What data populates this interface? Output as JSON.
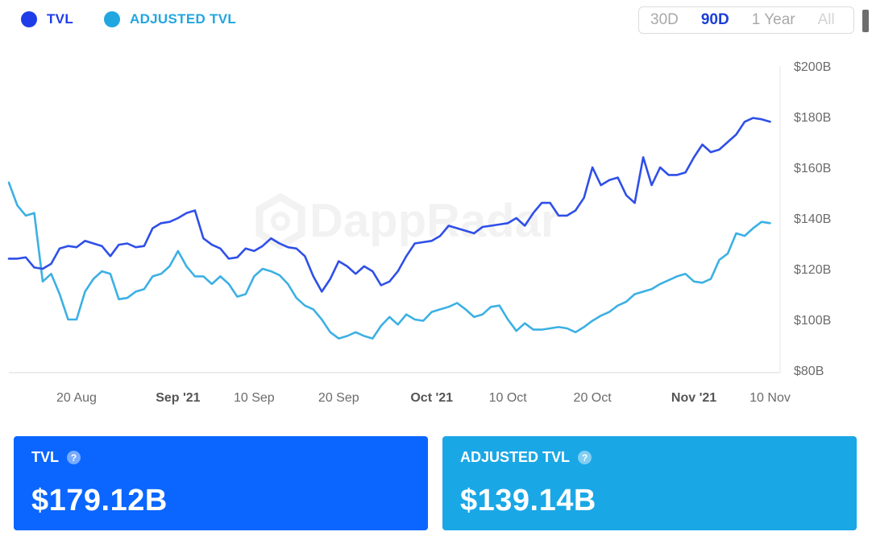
{
  "colors": {
    "tvl": "#2f4fe8",
    "adjusted": "#3cb0e4",
    "tvl_card": "#0a66ff",
    "adjusted_card": "#1aa7e6",
    "active_range": "#1a3fd6",
    "inactive_range": "#a9a9a9"
  },
  "legend": [
    {
      "label": "TVL",
      "color": "#1e3de8"
    },
    {
      "label": "ADJUSTED TVL",
      "color": "#22a6e0"
    }
  ],
  "ranges": [
    {
      "label": "30D",
      "active": false
    },
    {
      "label": "90D",
      "active": true
    },
    {
      "label": "1 Year",
      "active": false
    },
    {
      "label": "All",
      "active": false
    }
  ],
  "watermark": "DappRadar",
  "cards": {
    "tvl": {
      "title": "TVL",
      "value": "$179.12B",
      "help_icon": "question-circle-icon"
    },
    "adjusted": {
      "title": "ADJUSTED TVL",
      "value": "$139.14B",
      "help_icon": "question-circle-icon"
    }
  },
  "chart_data": {
    "type": "line",
    "x_start": "2021-08-12",
    "x_end": "2021-11-11",
    "ylim": [
      80,
      200
    ],
    "y_unit": "B",
    "y_ticks": [
      "$200B",
      "$180B",
      "$160B",
      "$140B",
      "$120B",
      "$100B",
      "$80B"
    ],
    "x_ticks": [
      {
        "date": "2021-08-20",
        "label": "20 Aug",
        "bold": false
      },
      {
        "date": "2021-09-01",
        "label": "Sep '21",
        "bold": true
      },
      {
        "date": "2021-09-10",
        "label": "10 Sep",
        "bold": false
      },
      {
        "date": "2021-09-20",
        "label": "20 Sep",
        "bold": false
      },
      {
        "date": "2021-10-01",
        "label": "Oct '21",
        "bold": true
      },
      {
        "date": "2021-10-10",
        "label": "10 Oct",
        "bold": false
      },
      {
        "date": "2021-10-20",
        "label": "20 Oct",
        "bold": false
      },
      {
        "date": "2021-11-01",
        "label": "Nov '21",
        "bold": true
      },
      {
        "date": "2021-11-10",
        "label": "10 Nov",
        "bold": false
      }
    ],
    "series": [
      {
        "name": "TVL",
        "points": [
          [
            "2021-08-12",
            124
          ],
          [
            "2021-08-13",
            124
          ],
          [
            "2021-08-14",
            124.5
          ],
          [
            "2021-08-15",
            120.5
          ],
          [
            "2021-08-16",
            120
          ],
          [
            "2021-08-17",
            122
          ],
          [
            "2021-08-18",
            128
          ],
          [
            "2021-08-19",
            129
          ],
          [
            "2021-08-20",
            128.5
          ],
          [
            "2021-08-21",
            131
          ],
          [
            "2021-08-22",
            130
          ],
          [
            "2021-08-23",
            129
          ],
          [
            "2021-08-24",
            125
          ],
          [
            "2021-08-25",
            129.5
          ],
          [
            "2021-08-26",
            130
          ],
          [
            "2021-08-27",
            128.5
          ],
          [
            "2021-08-28",
            129
          ],
          [
            "2021-08-29",
            136
          ],
          [
            "2021-08-30",
            138
          ],
          [
            "2021-08-31",
            138.5
          ],
          [
            "2021-09-01",
            140
          ],
          [
            "2021-09-02",
            142
          ],
          [
            "2021-09-03",
            143
          ],
          [
            "2021-09-04",
            132
          ],
          [
            "2021-09-05",
            129.5
          ],
          [
            "2021-09-06",
            128
          ],
          [
            "2021-09-07",
            124
          ],
          [
            "2021-09-08",
            124.5
          ],
          [
            "2021-09-09",
            128
          ],
          [
            "2021-09-10",
            127
          ],
          [
            "2021-09-11",
            129
          ],
          [
            "2021-09-12",
            132
          ],
          [
            "2021-09-13",
            130
          ],
          [
            "2021-09-14",
            128.5
          ],
          [
            "2021-09-15",
            128
          ],
          [
            "2021-09-16",
            125
          ],
          [
            "2021-09-17",
            117
          ],
          [
            "2021-09-18",
            111
          ],
          [
            "2021-09-19",
            116
          ],
          [
            "2021-09-20",
            123
          ],
          [
            "2021-09-21",
            121
          ],
          [
            "2021-09-22",
            118
          ],
          [
            "2021-09-23",
            121
          ],
          [
            "2021-09-24",
            119
          ],
          [
            "2021-09-25",
            113.5
          ],
          [
            "2021-09-26",
            115
          ],
          [
            "2021-09-27",
            119
          ],
          [
            "2021-09-28",
            125
          ],
          [
            "2021-09-29",
            130
          ],
          [
            "2021-09-30",
            130.5
          ],
          [
            "2021-10-01",
            131
          ],
          [
            "2021-10-02",
            133
          ],
          [
            "2021-10-03",
            137
          ],
          [
            "2021-10-04",
            136
          ],
          [
            "2021-10-05",
            135
          ],
          [
            "2021-10-06",
            134
          ],
          [
            "2021-10-07",
            136.5
          ],
          [
            "2021-10-08",
            137
          ],
          [
            "2021-10-09",
            137.5
          ],
          [
            "2021-10-10",
            138
          ],
          [
            "2021-10-11",
            140
          ],
          [
            "2021-10-12",
            137
          ],
          [
            "2021-10-13",
            142
          ],
          [
            "2021-10-14",
            146
          ],
          [
            "2021-10-15",
            146
          ],
          [
            "2021-10-16",
            141
          ],
          [
            "2021-10-17",
            141
          ],
          [
            "2021-10-18",
            143
          ],
          [
            "2021-10-19",
            148
          ],
          [
            "2021-10-20",
            160
          ],
          [
            "2021-10-21",
            153
          ],
          [
            "2021-10-22",
            155
          ],
          [
            "2021-10-23",
            156
          ],
          [
            "2021-10-24",
            149
          ],
          [
            "2021-10-25",
            146
          ],
          [
            "2021-10-26",
            164
          ],
          [
            "2021-10-27",
            153
          ],
          [
            "2021-10-28",
            160
          ],
          [
            "2021-10-29",
            157
          ],
          [
            "2021-10-30",
            157
          ],
          [
            "2021-10-31",
            158
          ],
          [
            "2021-11-01",
            164
          ],
          [
            "2021-11-02",
            169
          ],
          [
            "2021-11-03",
            166
          ],
          [
            "2021-11-04",
            167
          ],
          [
            "2021-11-05",
            170
          ],
          [
            "2021-11-06",
            173
          ],
          [
            "2021-11-07",
            178
          ],
          [
            "2021-11-08",
            179.5
          ],
          [
            "2021-11-09",
            179
          ],
          [
            "2021-11-10",
            178
          ]
        ]
      },
      {
        "name": "ADJUSTED TVL",
        "points": [
          [
            "2021-08-12",
            154
          ],
          [
            "2021-08-13",
            145
          ],
          [
            "2021-08-14",
            141
          ],
          [
            "2021-08-15",
            142
          ],
          [
            "2021-08-16",
            115
          ],
          [
            "2021-08-17",
            118
          ],
          [
            "2021-08-18",
            110
          ],
          [
            "2021-08-19",
            100
          ],
          [
            "2021-08-20",
            100
          ],
          [
            "2021-08-21",
            111
          ],
          [
            "2021-08-22",
            116
          ],
          [
            "2021-08-23",
            119
          ],
          [
            "2021-08-24",
            118
          ],
          [
            "2021-08-25",
            108
          ],
          [
            "2021-08-26",
            108.5
          ],
          [
            "2021-08-27",
            111
          ],
          [
            "2021-08-28",
            112
          ],
          [
            "2021-08-29",
            117
          ],
          [
            "2021-08-30",
            118
          ],
          [
            "2021-08-31",
            121
          ],
          [
            "2021-09-01",
            127
          ],
          [
            "2021-09-02",
            121
          ],
          [
            "2021-09-03",
            117
          ],
          [
            "2021-09-04",
            117
          ],
          [
            "2021-09-05",
            114
          ],
          [
            "2021-09-06",
            117
          ],
          [
            "2021-09-07",
            114
          ],
          [
            "2021-09-08",
            109
          ],
          [
            "2021-09-09",
            110
          ],
          [
            "2021-09-10",
            117
          ],
          [
            "2021-09-11",
            120
          ],
          [
            "2021-09-12",
            119
          ],
          [
            "2021-09-13",
            117.5
          ],
          [
            "2021-09-14",
            114
          ],
          [
            "2021-09-15",
            108.5
          ],
          [
            "2021-09-16",
            105.5
          ],
          [
            "2021-09-17",
            104
          ],
          [
            "2021-09-18",
            100
          ],
          [
            "2021-09-19",
            95
          ],
          [
            "2021-09-20",
            92.5
          ],
          [
            "2021-09-21",
            93.5
          ],
          [
            "2021-09-22",
            95
          ],
          [
            "2021-09-23",
            93.5
          ],
          [
            "2021-09-24",
            92.5
          ],
          [
            "2021-09-25",
            97.5
          ],
          [
            "2021-09-26",
            101
          ],
          [
            "2021-09-27",
            98
          ],
          [
            "2021-09-28",
            102
          ],
          [
            "2021-09-29",
            100
          ],
          [
            "2021-09-30",
            99.5
          ],
          [
            "2021-10-01",
            103
          ],
          [
            "2021-10-02",
            104
          ],
          [
            "2021-10-03",
            105
          ],
          [
            "2021-10-04",
            106.5
          ],
          [
            "2021-10-05",
            104
          ],
          [
            "2021-10-06",
            101
          ],
          [
            "2021-10-07",
            102
          ],
          [
            "2021-10-08",
            105
          ],
          [
            "2021-10-09",
            105.5
          ],
          [
            "2021-10-10",
            100
          ],
          [
            "2021-10-11",
            95.5
          ],
          [
            "2021-10-12",
            98.5
          ],
          [
            "2021-10-13",
            96
          ],
          [
            "2021-10-14",
            96
          ],
          [
            "2021-10-15",
            96.5
          ],
          [
            "2021-10-16",
            97
          ],
          [
            "2021-10-17",
            96.5
          ],
          [
            "2021-10-18",
            95
          ],
          [
            "2021-10-19",
            97
          ],
          [
            "2021-10-20",
            99.5
          ],
          [
            "2021-10-21",
            101.5
          ],
          [
            "2021-10-22",
            103
          ],
          [
            "2021-10-23",
            105.5
          ],
          [
            "2021-10-24",
            107
          ],
          [
            "2021-10-25",
            110
          ],
          [
            "2021-10-26",
            111
          ],
          [
            "2021-10-27",
            112
          ],
          [
            "2021-10-28",
            114
          ],
          [
            "2021-10-29",
            115.5
          ],
          [
            "2021-10-30",
            117
          ],
          [
            "2021-10-31",
            118
          ],
          [
            "2021-11-01",
            115
          ],
          [
            "2021-11-02",
            114.5
          ],
          [
            "2021-11-03",
            116
          ],
          [
            "2021-11-04",
            123.5
          ],
          [
            "2021-11-05",
            126
          ],
          [
            "2021-11-06",
            134
          ],
          [
            "2021-11-07",
            133
          ],
          [
            "2021-11-08",
            136
          ],
          [
            "2021-11-09",
            138.5
          ],
          [
            "2021-11-10",
            138
          ]
        ]
      }
    ]
  }
}
